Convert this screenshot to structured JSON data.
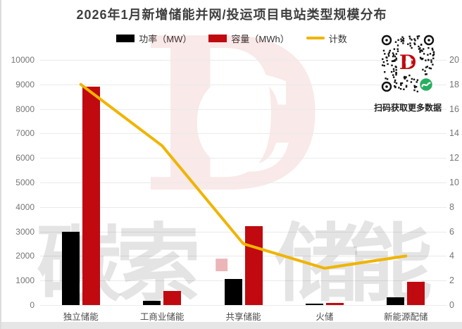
{
  "chart": {
    "title": "2026年1月新增储能并网/投运项目电站类型规模分布"
  },
  "chart_data": {
    "type": "bar",
    "title": "2026年1月新增储能并网/投运项目电站类型规模分布",
    "categories": [
      "独立储能",
      "工商业储能",
      "共享储能",
      "火储",
      "新能源配储"
    ],
    "series": [
      {
        "id": "power",
        "name": "功率（MW）",
        "type": "bar",
        "axis": "left",
        "color": "#000000",
        "values": [
          3000,
          170,
          1060,
          50,
          320
        ]
      },
      {
        "id": "capacity",
        "name": "容量（MWh）",
        "type": "bar",
        "axis": "left",
        "color": "#c00a10",
        "values": [
          8900,
          570,
          3220,
          100,
          950
        ]
      },
      {
        "id": "count",
        "name": "计数",
        "type": "line",
        "axis": "right",
        "color": "#f0b400",
        "values": [
          18,
          13,
          5,
          3,
          4
        ]
      }
    ],
    "left_axis": {
      "min": 0,
      "max": 10000,
      "step": 1000
    },
    "right_axis": {
      "min": 0,
      "max": 20,
      "step": 2
    },
    "grid": true,
    "legend_position": "top",
    "xlabel": "",
    "ylabel": ""
  },
  "watermark": {
    "chars": [
      "碳",
      "索",
      "·",
      "储",
      "能"
    ],
    "logo_d": "D",
    "logo_c": "C"
  },
  "qr": {
    "caption": "扫码获取更多数据",
    "logo_d": "D",
    "logo_c": "C",
    "wechat_icon_color": "#27ae60"
  }
}
